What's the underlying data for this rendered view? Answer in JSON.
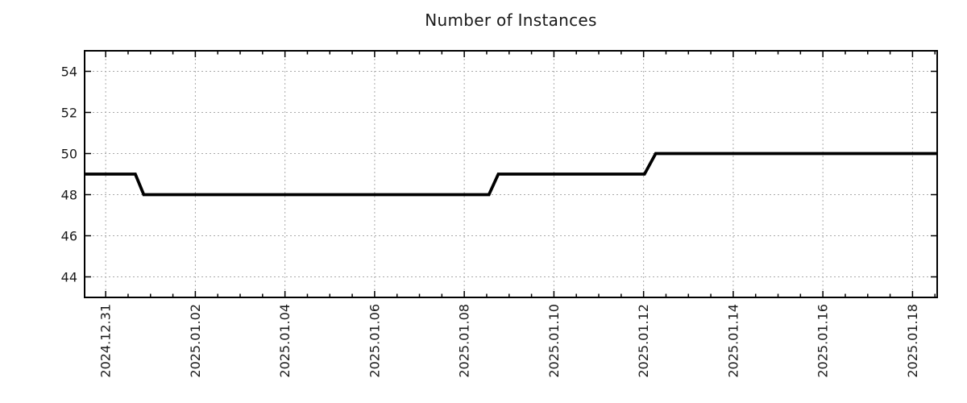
{
  "chart_data": {
    "type": "line",
    "title": "Number of Instances",
    "style": "step-like time series, thick black line, dotted grid, no legend",
    "line_color": "#000000",
    "grid_color": "#aaaaaa",
    "axis_color": "#000000",
    "text_color": "#1a1a1a",
    "grid": true,
    "legend": false,
    "x_axis": {
      "label": "",
      "tick_labels": [
        "2024.12.31",
        "2025.01.02",
        "2025.01.04",
        "2025.01.06",
        "2025.01.08",
        "2025.01.10",
        "2025.01.12",
        "2025.01.14",
        "2025.01.16",
        "2025.01.18"
      ],
      "tick_positions_days": [
        0,
        2,
        4,
        6,
        8,
        10,
        12,
        14,
        16,
        18
      ],
      "range_days": [
        -0.47,
        18.55
      ],
      "minor_tick_interval_days": 0.5,
      "label_rotation_deg": 90
    },
    "y_axis": {
      "label": "",
      "ticks": [
        44,
        46,
        48,
        50,
        52,
        54
      ],
      "range": [
        43,
        55
      ]
    },
    "series": [
      {
        "name": "instances",
        "color": "#000000",
        "points": [
          [
            -0.47,
            49
          ],
          [
            0.66,
            49
          ],
          [
            0.85,
            48
          ],
          [
            8.55,
            48
          ],
          [
            8.76,
            49
          ],
          [
            12.02,
            49
          ],
          [
            12.27,
            50
          ],
          [
            18.55,
            50
          ]
        ]
      }
    ]
  }
}
